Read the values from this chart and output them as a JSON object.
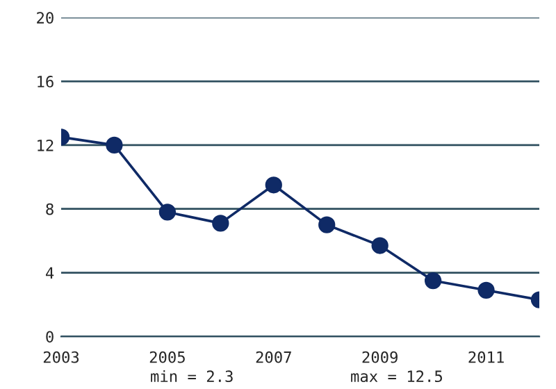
{
  "chart_data": {
    "type": "line",
    "x": [
      2003,
      2004,
      2005,
      2006,
      2007,
      2008,
      2009,
      2010,
      2011,
      2012
    ],
    "series": [
      {
        "color": "#0f2a66",
        "values": [
          12.5,
          12.0,
          7.8,
          7.1,
          9.5,
          7.0,
          5.7,
          3.5,
          2.9,
          2.3
        ]
      }
    ],
    "xlim": [
      2003,
      2012
    ],
    "xticks": [
      2003,
      2005,
      2007,
      2009,
      2011
    ],
    "ylim": [
      0,
      20
    ],
    "yticks": [
      0,
      4,
      8,
      12,
      16,
      20
    ],
    "grid": "y",
    "marker": "circle",
    "line_style": "solid",
    "annotations": [
      "min = 2.3",
      "max = 12.5"
    ]
  }
}
